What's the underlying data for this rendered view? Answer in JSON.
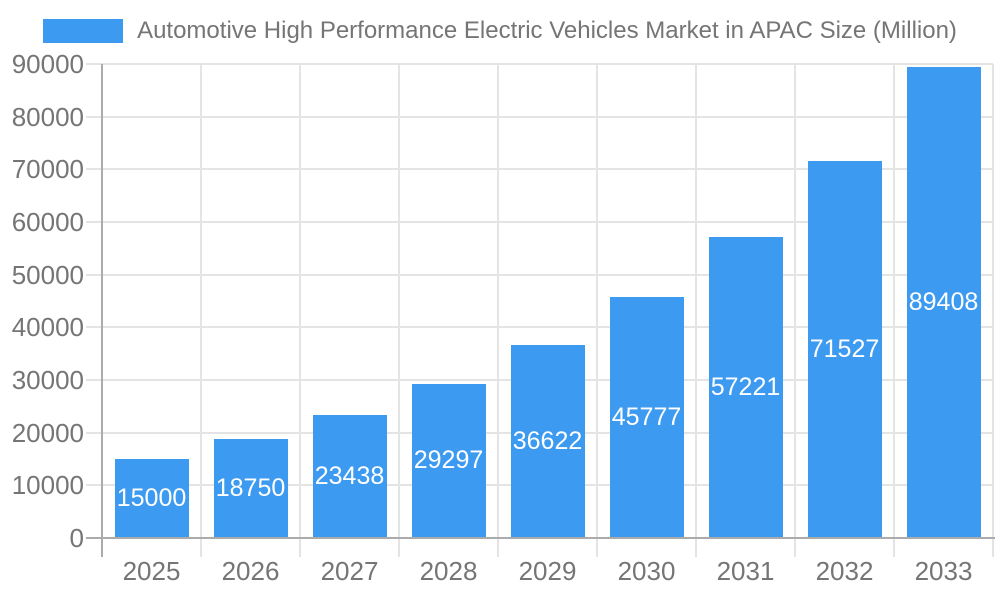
{
  "legend": {
    "label": "Automotive High Performance Electric Vehicles Market in APAC Size (Million)"
  },
  "colors": {
    "bar": "#3C9AF0",
    "axis_text": "#757575",
    "grid": "#e4e4e4",
    "axis_line": "#ababab",
    "bar_label": "#ffffff",
    "background": "#ffffff"
  },
  "chart_data": {
    "type": "bar",
    "title": "Automotive High Performance Electric Vehicles Market in APAC Size (Million)",
    "categories": [
      "2025",
      "2026",
      "2027",
      "2028",
      "2029",
      "2030",
      "2031",
      "2032",
      "2033"
    ],
    "values": [
      15000,
      18750,
      23438,
      29297,
      36622,
      45777,
      57221,
      71527,
      89408
    ],
    "xlabel": "",
    "ylabel": "",
    "ylim": [
      0,
      90000
    ],
    "yticks": [
      0,
      10000,
      20000,
      30000,
      40000,
      50000,
      60000,
      70000,
      80000,
      90000
    ],
    "grid": true,
    "legend_position": "top",
    "value_labels": "inside-center"
  }
}
